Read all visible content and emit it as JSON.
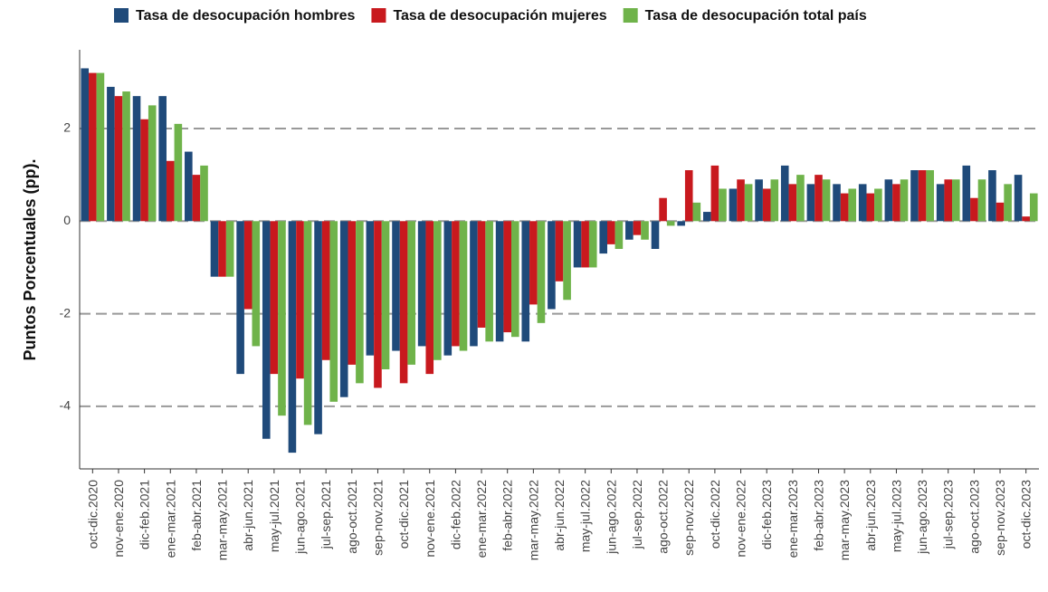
{
  "chart_data": {
    "type": "bar",
    "ylabel": "Puntos Porcentuales (pp).",
    "categories": [
      "oct-dic.2020",
      "nov-ene.2020",
      "dic-feb.2021",
      "ene-mar.2021",
      "feb-abr.2021",
      "mar-may.2021",
      "abr-jun.2021",
      "may-jul.2021",
      "jun-ago.2021",
      "jul-sep.2021",
      "ago-oct.2021",
      "sep-nov.2021",
      "oct-dic.2021",
      "nov-ene.2021",
      "dic-feb.2022",
      "ene-mar.2022",
      "feb-abr.2022",
      "mar-may.2022",
      "abr-jun.2022",
      "may-jul.2022",
      "jun-ago.2022",
      "jul-sep.2022",
      "ago-oct.2022",
      "sep-nov.2022",
      "oct-dic.2022",
      "nov-ene.2022",
      "dic-feb.2023",
      "ene-mar.2023",
      "feb-abr.2023",
      "mar-may.2023",
      "abr-jun.2023",
      "may-jul.2023",
      "jun-ago.2023",
      "jul-sep.2023",
      "ago-oct.2023",
      "sep-nov.2023",
      "oct-dic.2023"
    ],
    "series": [
      {
        "name": "Tasa de desocupación hombres",
        "color": "#1f4a7a",
        "values": [
          3.3,
          2.9,
          2.7,
          2.7,
          1.5,
          -1.2,
          -3.3,
          -4.7,
          -5.0,
          -4.6,
          -3.8,
          -2.9,
          -2.8,
          -2.7,
          -2.9,
          -2.7,
          -2.6,
          -2.6,
          -1.9,
          -1.0,
          -0.7,
          -0.4,
          -0.6,
          -0.1,
          0.2,
          0.7,
          0.9,
          1.2,
          0.8,
          0.8,
          0.8,
          0.9,
          1.1,
          0.8,
          1.2,
          1.1,
          1.0
        ]
      },
      {
        "name": "Tasa de desocupación mujeres",
        "color": "#c8191e",
        "values": [
          3.2,
          2.7,
          2.2,
          1.3,
          1.0,
          -1.2,
          -1.9,
          -3.3,
          -3.4,
          -3.0,
          -3.1,
          -3.6,
          -3.5,
          -3.3,
          -2.7,
          -2.3,
          -2.4,
          -1.8,
          -1.3,
          -1.0,
          -0.5,
          -0.3,
          0.5,
          1.1,
          1.2,
          0.9,
          0.7,
          0.8,
          1.0,
          0.6,
          0.6,
          0.8,
          1.1,
          0.9,
          0.5,
          0.4,
          0.1
        ]
      },
      {
        "name": "Tasa de desocupación total país",
        "color": "#6fb34a",
        "values": [
          3.2,
          2.8,
          2.5,
          2.1,
          1.2,
          -1.2,
          -2.7,
          -4.2,
          -4.4,
          -3.9,
          -3.5,
          -3.2,
          -3.1,
          -3.0,
          -2.8,
          -2.6,
          -2.5,
          -2.2,
          -1.7,
          -1.0,
          -0.6,
          -0.4,
          -0.1,
          0.4,
          0.7,
          0.8,
          0.9,
          1.0,
          0.9,
          0.7,
          0.7,
          0.9,
          1.1,
          0.9,
          0.9,
          0.8,
          0.6
        ]
      }
    ],
    "ylim": [
      -5.35,
      3.7
    ],
    "yticks": [
      -4,
      -2,
      0,
      2
    ],
    "grid": true,
    "legend": "top"
  }
}
